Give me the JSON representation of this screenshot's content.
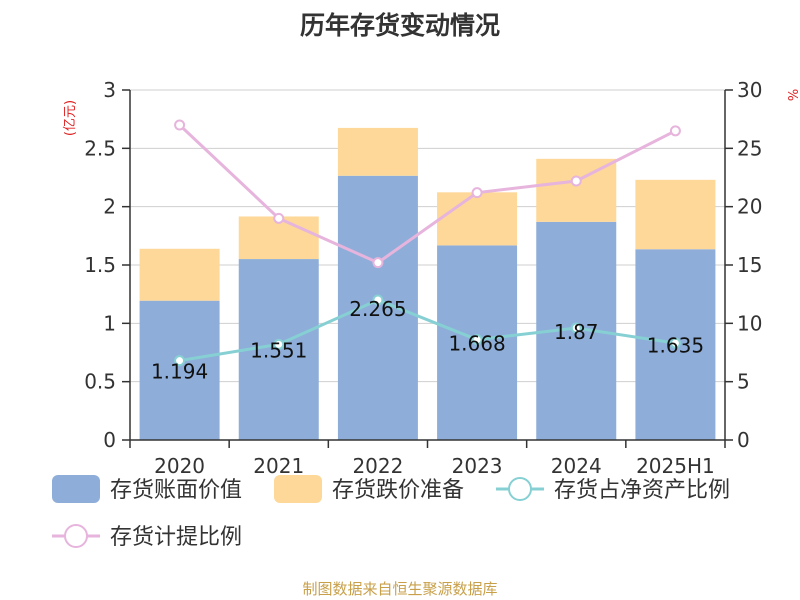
{
  "chart_data": {
    "type": "bar",
    "title": "历年存货变动情况",
    "categories": [
      "2020",
      "2021",
      "2022",
      "2023",
      "2024",
      "2025H1"
    ],
    "series": [
      {
        "name": "存货账面价值",
        "kind": "bar-stacked",
        "axis": "left",
        "color": "#8eaed9",
        "values": [
          1.194,
          1.551,
          2.265,
          1.668,
          1.87,
          1.635
        ],
        "labels": [
          "1.194",
          "1.551",
          "2.265",
          "1.668",
          "1.87",
          "1.635"
        ]
      },
      {
        "name": "存货跌价准备",
        "kind": "bar-stacked",
        "axis": "left",
        "color": "#fdd898",
        "values": [
          0.445,
          0.365,
          0.41,
          0.455,
          0.54,
          0.595
        ]
      },
      {
        "name": "存货占净资产比例",
        "kind": "line",
        "axis": "right",
        "color": "#86d0d4",
        "values": [
          6.8,
          8.2,
          12.0,
          8.6,
          9.6,
          8.3
        ]
      },
      {
        "name": "存货计提比例",
        "kind": "line",
        "axis": "right",
        "color": "#e6b4dc",
        "values": [
          27.0,
          19.0,
          15.2,
          21.2,
          22.2,
          26.5
        ]
      }
    ],
    "y_left": {
      "label": "(亿元)",
      "min": 0,
      "max": 3,
      "ticks": [
        "0",
        "0.5",
        "1",
        "1.5",
        "2",
        "2.5",
        "3"
      ]
    },
    "y_right": {
      "label": "%",
      "min": 0,
      "max": 30,
      "ticks": [
        "0",
        "5",
        "10",
        "15",
        "20",
        "25",
        "30"
      ]
    },
    "grid": true,
    "legend_position": "bottom"
  },
  "source": "制图数据来自恒生聚源数据库"
}
